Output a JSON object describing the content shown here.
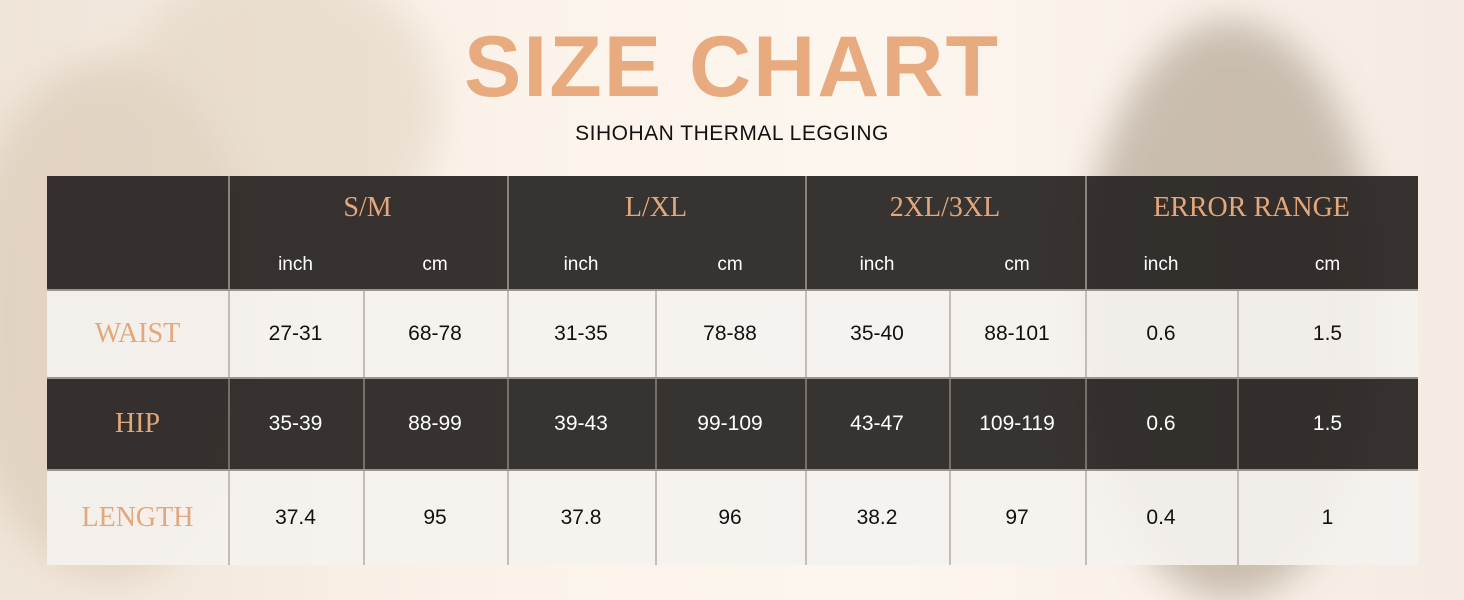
{
  "header": {
    "title": "SIZE CHART",
    "subtitle": "SIHOHAN THERMAL LEGGING"
  },
  "table": {
    "groups": [
      "S/M",
      "L/XL",
      "2XL/3XL",
      "ERROR RANGE"
    ],
    "units": [
      "inch",
      "cm",
      "inch",
      "cm",
      "inch",
      "cm",
      "inch",
      "cm"
    ],
    "rows": [
      {
        "label": "WAIST",
        "cells": [
          "27-31",
          "68-78",
          "31-35",
          "78-88",
          "35-40",
          "88-101",
          "0.6",
          "1.5"
        ]
      },
      {
        "label": "HIP",
        "cells": [
          "35-39",
          "88-99",
          "39-43",
          "99-109",
          "43-47",
          "109-119",
          "0.6",
          "1.5"
        ]
      },
      {
        "label": "LENGTH",
        "cells": [
          "37.4",
          "95",
          "37.8",
          "96",
          "38.2",
          "97",
          "0.4",
          "1"
        ]
      }
    ]
  }
}
